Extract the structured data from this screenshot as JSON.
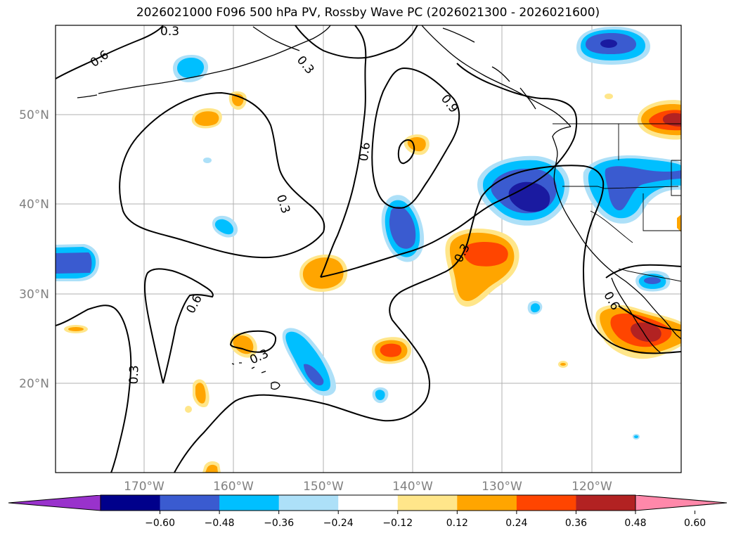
{
  "title": "2026021000 F096 500 hPa PV, Rossby Wave PC (2026021300 - 2026021600)",
  "map": {
    "lat_labels": [
      "50°N",
      "40°N",
      "30°N",
      "20°N"
    ],
    "lon_labels": [
      "170°W",
      "160°W",
      "150°W",
      "140°W",
      "130°W",
      "120°W"
    ],
    "contour_labels": [
      "0.6",
      "0.3",
      "0.3",
      "0.9",
      "0.6",
      "0.3",
      "0.6",
      "0.3",
      "0.3",
      "0.3",
      "0.6"
    ]
  },
  "colorbar": {
    "ticks": [
      "−0.60",
      "−0.48",
      "−0.36",
      "−0.24",
      "−0.12",
      "0.12",
      "0.24",
      "0.36",
      "0.48",
      "0.60"
    ],
    "colors": [
      "#9932CC",
      "#00008B",
      "#3A5BD0",
      "#00BFFF",
      "#ADE0F8",
      "#FFFFFF",
      "#FFE68A",
      "#FFA500",
      "#FF4500",
      "#B22222",
      "#FF88AA"
    ]
  },
  "legend": {
    "anomaly_colors": {
      "deep_blue": "#1A1AA0",
      "blue": "#3A5BD0",
      "cyan": "#00BFFF",
      "light_blue": "#ADE0F8",
      "light_yellow": "#FFE68A",
      "orange": "#FFA500",
      "red_orange": "#FF4500",
      "dark_red": "#B22222"
    }
  }
}
